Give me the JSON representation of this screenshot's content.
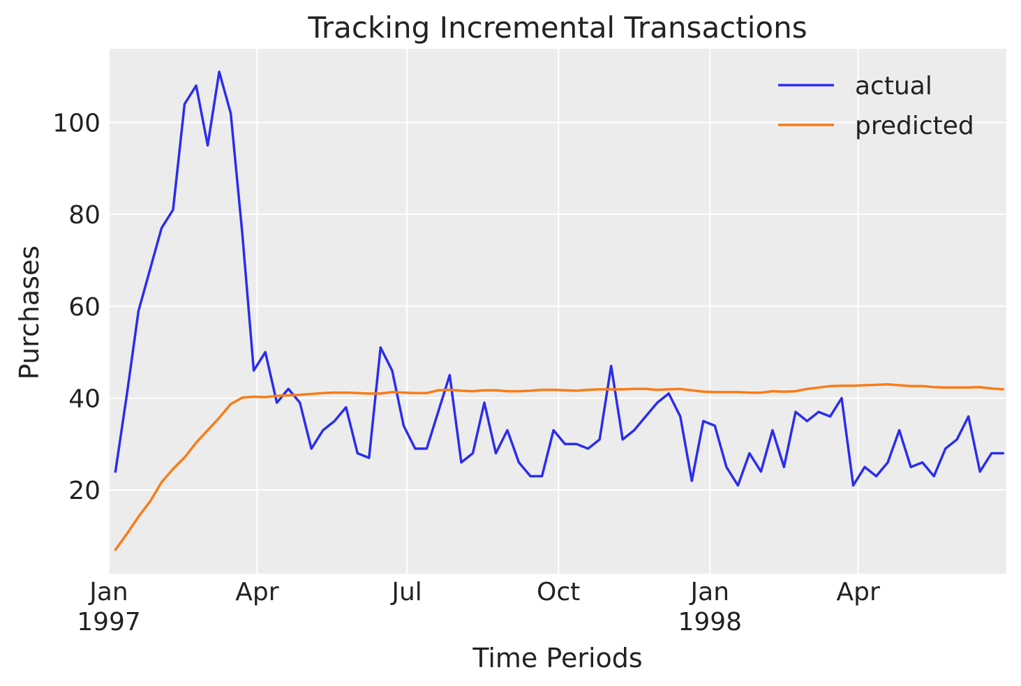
{
  "chart_data": {
    "type": "line",
    "title": "Tracking Incremental Transactions",
    "xlabel": "Time Periods",
    "ylabel": "Purchases",
    "x_start": "1997-01-01",
    "x_end": "1998-06-30",
    "ylim": [
      1.8,
      116.0
    ],
    "yticks": [
      20,
      40,
      60,
      80,
      100
    ],
    "xticks": [
      {
        "date": "1997-01-01",
        "label": "Jan",
        "sublabel": "1997"
      },
      {
        "date": "1997-04-01",
        "label": "Apr",
        "sublabel": ""
      },
      {
        "date": "1997-07-01",
        "label": "Jul",
        "sublabel": ""
      },
      {
        "date": "1997-10-01",
        "label": "Oct",
        "sublabel": ""
      },
      {
        "date": "1998-01-01",
        "label": "Jan",
        "sublabel": "1998"
      },
      {
        "date": "1998-04-01",
        "label": "Apr",
        "sublabel": ""
      }
    ],
    "grid": true,
    "legend_position": "top-right",
    "background": "#ececec",
    "x": [
      "1997-01-05",
      "1997-01-12",
      "1997-01-19",
      "1997-01-26",
      "1997-02-02",
      "1997-02-09",
      "1997-02-16",
      "1997-02-23",
      "1997-03-02",
      "1997-03-09",
      "1997-03-16",
      "1997-03-23",
      "1997-03-30",
      "1997-04-06",
      "1997-04-13",
      "1997-04-20",
      "1997-04-27",
      "1997-05-04",
      "1997-05-11",
      "1997-05-18",
      "1997-05-25",
      "1997-06-01",
      "1997-06-08",
      "1997-06-15",
      "1997-06-22",
      "1997-06-29",
      "1997-07-06",
      "1997-07-13",
      "1997-07-20",
      "1997-07-27",
      "1997-08-03",
      "1997-08-10",
      "1997-08-17",
      "1997-08-24",
      "1997-08-31",
      "1997-09-07",
      "1997-09-14",
      "1997-09-21",
      "1997-09-28",
      "1997-10-05",
      "1997-10-12",
      "1997-10-19",
      "1997-10-26",
      "1997-11-02",
      "1997-11-09",
      "1997-11-16",
      "1997-11-23",
      "1997-11-30",
      "1997-12-07",
      "1997-12-14",
      "1997-12-21",
      "1997-12-28",
      "1998-01-04",
      "1998-01-11",
      "1998-01-18",
      "1998-01-25",
      "1998-02-01",
      "1998-02-08",
      "1998-02-15",
      "1998-02-22",
      "1998-03-01",
      "1998-03-08",
      "1998-03-15",
      "1998-03-22",
      "1998-03-29",
      "1998-04-05",
      "1998-04-12",
      "1998-04-19",
      "1998-04-26",
      "1998-05-03",
      "1998-05-10",
      "1998-05-17",
      "1998-05-24",
      "1998-05-31",
      "1998-06-07",
      "1998-06-14",
      "1998-06-21",
      "1998-06-28"
    ],
    "series": [
      {
        "name": "actual",
        "color": "#2a2eec",
        "values": [
          24,
          41,
          59,
          68,
          77,
          81,
          104,
          108,
          95,
          111,
          102,
          76,
          46,
          50,
          39,
          42,
          39,
          29,
          33,
          35,
          38,
          28,
          27,
          51,
          46,
          34,
          29,
          29,
          37,
          45,
          26,
          28,
          39,
          28,
          33,
          26,
          23,
          23,
          33,
          30,
          30,
          29,
          31,
          47,
          31,
          33,
          36,
          39,
          41,
          36,
          22,
          35,
          34,
          25,
          21,
          28,
          24,
          33,
          25,
          37,
          35,
          37,
          36,
          40,
          21,
          25,
          23,
          26,
          33,
          25,
          26,
          23,
          29,
          31,
          36,
          24,
          28,
          28
        ]
      },
      {
        "name": "predicted",
        "color": "#fa7c17",
        "values": [
          7,
          10.5,
          14.2,
          17.5,
          21.7,
          24.6,
          27.1,
          30.3,
          33.0,
          35.7,
          38.7,
          40.1,
          40.3,
          40.2,
          40.5,
          40.6,
          40.7,
          40.9,
          41.1,
          41.2,
          41.2,
          41.1,
          41.0,
          41.0,
          41.3,
          41.2,
          41.1,
          41.1,
          41.7,
          41.8,
          41.6,
          41.5,
          41.7,
          41.7,
          41.5,
          41.5,
          41.6,
          41.8,
          41.8,
          41.7,
          41.6,
          41.8,
          41.9,
          41.9,
          41.9,
          42.0,
          42.0,
          41.8,
          41.9,
          42.0,
          41.7,
          41.4,
          41.3,
          41.3,
          41.3,
          41.2,
          41.2,
          41.5,
          41.4,
          41.5,
          42.0,
          42.3,
          42.6,
          42.7,
          42.7,
          42.8,
          42.9,
          43.0,
          42.8,
          42.6,
          42.6,
          42.4,
          42.3,
          42.3,
          42.3,
          42.4,
          42.1,
          41.9
        ]
      }
    ]
  }
}
